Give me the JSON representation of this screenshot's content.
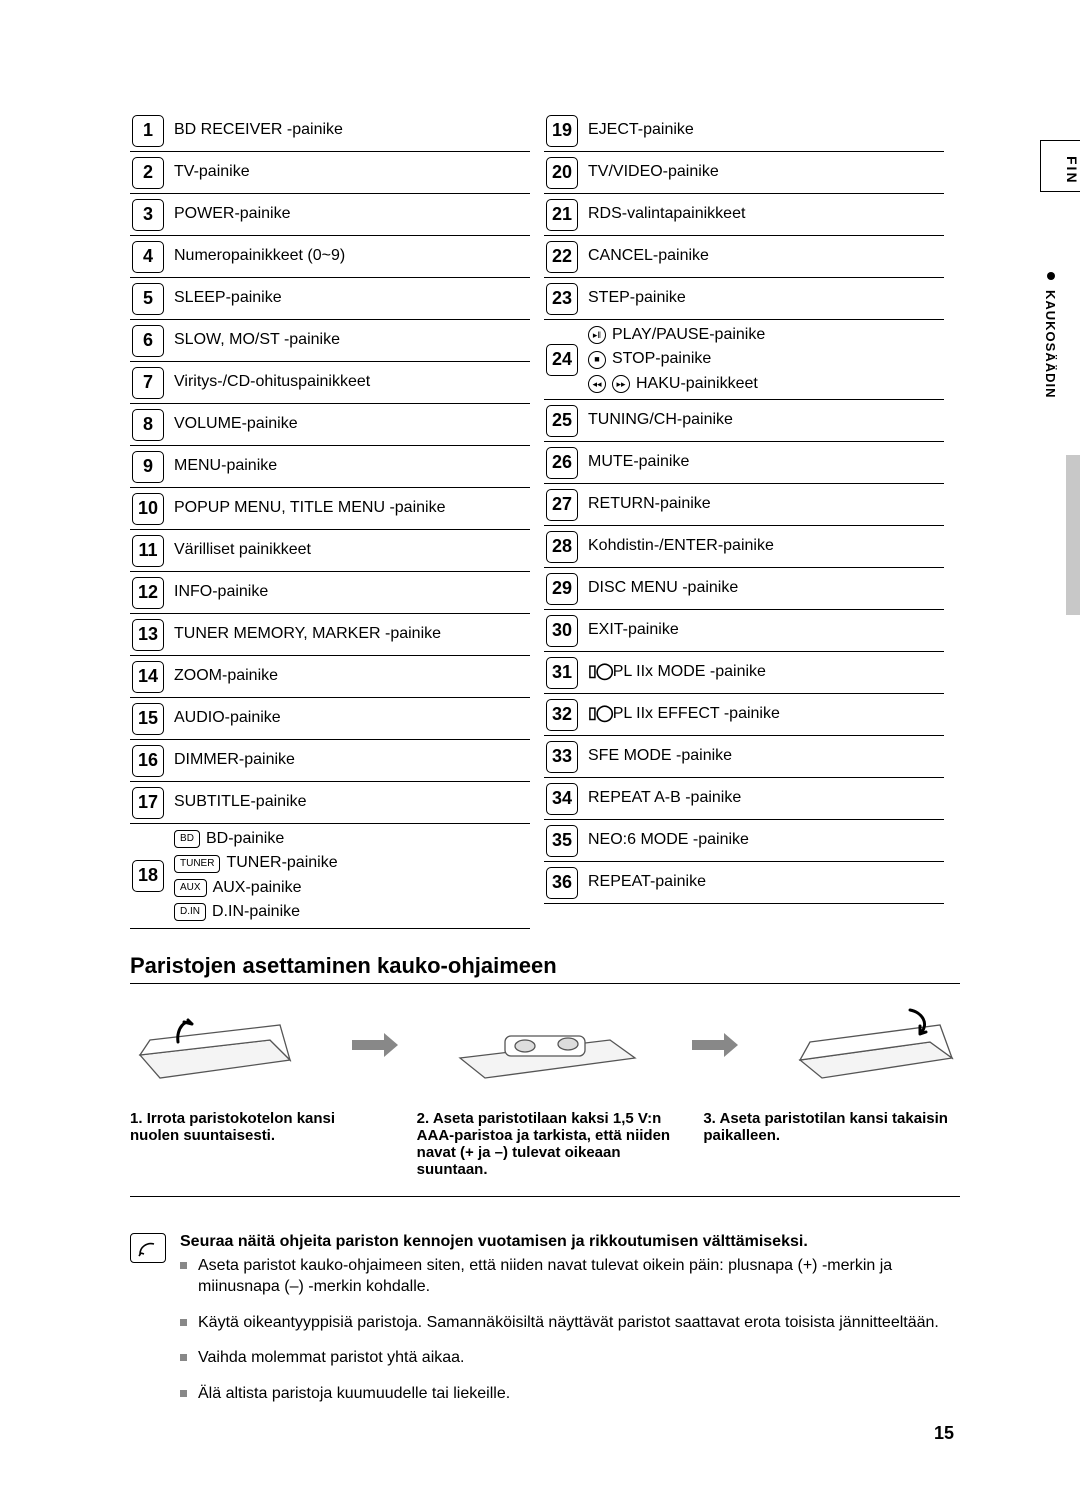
{
  "side": {
    "tab": "FIN",
    "label": "KAUKOSÄÄDIN"
  },
  "left": [
    {
      "n": "1",
      "t": "BD RECEIVER -painike"
    },
    {
      "n": "2",
      "t": "TV-painike"
    },
    {
      "n": "3",
      "t": "POWER-painike"
    },
    {
      "n": "4",
      "t": "Numeropainikkeet (0~9)"
    },
    {
      "n": "5",
      "t": "SLEEP-painike"
    },
    {
      "n": "6",
      "t": "SLOW, MO/ST -painike"
    },
    {
      "n": "7",
      "t": "Viritys-/CD-ohituspainikkeet"
    },
    {
      "n": "8",
      "t": "VOLUME-painike"
    },
    {
      "n": "9",
      "t": "MENU-painike"
    },
    {
      "n": "10",
      "t": "POPUP MENU, TITLE MENU -painike"
    },
    {
      "n": "11",
      "t": "Värilliset painikkeet"
    },
    {
      "n": "12",
      "t": "INFO-painike"
    },
    {
      "n": "13",
      "t": "TUNER MEMORY, MARKER -painike"
    },
    {
      "n": "14",
      "t": "ZOOM-painike"
    },
    {
      "n": "15",
      "t": "AUDIO-painike"
    },
    {
      "n": "16",
      "t": "DIMMER-painike"
    },
    {
      "n": "17",
      "t": "SUBTITLE-painike"
    }
  ],
  "left18": {
    "n": "18",
    "items": [
      {
        "box": "BD",
        "label": "BD-painike"
      },
      {
        "box": "TUNER",
        "label": "TUNER-painike"
      },
      {
        "box": "AUX",
        "label": "AUX-painike"
      },
      {
        "box": "D.IN",
        "label": "D.IN-painike"
      }
    ]
  },
  "right": [
    {
      "n": "19",
      "t": "EJECT-painike"
    },
    {
      "n": "20",
      "t": "TV/VIDEO-painike"
    },
    {
      "n": "21",
      "t": "RDS-valintapainikkeet"
    },
    {
      "n": "22",
      "t": "CANCEL-painike"
    },
    {
      "n": "23",
      "t": "STEP-painike"
    }
  ],
  "right24": {
    "n": "24",
    "items": [
      {
        "sym": "▸‖",
        "label": "PLAY/PAUSE-painike"
      },
      {
        "sym": "■",
        "label": "STOP-painike"
      },
      {
        "sym2": true,
        "label": "HAKU-painikkeet"
      }
    ]
  },
  "right2": [
    {
      "n": "25",
      "t": "TUNING/CH-painike"
    },
    {
      "n": "26",
      "t": "MUTE-painike"
    },
    {
      "n": "27",
      "t": "RETURN-painike"
    },
    {
      "n": "28",
      "t": "Kohdistin-/ENTER-painike"
    },
    {
      "n": "29",
      "t": "DISC MENU -painike"
    },
    {
      "n": "30",
      "t": "EXIT-painike"
    },
    {
      "n": "31",
      "t": "PL IIx MODE -painike",
      "pl": true
    },
    {
      "n": "32",
      "t": "PL IIx EFFECT -painike",
      "pl": true
    },
    {
      "n": "33",
      "t": "SFE MODE -painike"
    },
    {
      "n": "34",
      "t": "REPEAT A-B -painike"
    },
    {
      "n": "35",
      "t": "NEO:6 MODE -painike"
    },
    {
      "n": "36",
      "t": "REPEAT-painike"
    }
  ],
  "battery": {
    "title": "Paristojen asettaminen kauko-ohjaimeen",
    "steps": [
      {
        "n": "1.",
        "t": "Irrota paristokotelon kansi nuolen suuntaisesti."
      },
      {
        "n": "2.",
        "t": "Aseta paristotilaan kaksi 1,5 V:n AAA-paristoa ja tarkista, että niiden navat (+ ja –) tulevat oikeaan suuntaan."
      },
      {
        "n": "3.",
        "t": "Aseta paristotilan kansi takaisin paikalleen."
      }
    ]
  },
  "note": {
    "title": "Seuraa näitä ohjeita pariston kennojen vuotamisen ja rikkoutumisen välttämiseksi.",
    "items": [
      "Aseta paristot kauko-ohjaimeen siten, että niiden navat tulevat oikein päin: plusnapa (+) -merkin ja miinusnapa (–) -merkin kohdalle.",
      "Käytä oikeantyyppisiä paristoja. Samannäköisiltä näyttävät paristot saattavat erota toisista jännitteeltään.",
      "Vaihda molemmat paristot yhtä aikaa.",
      "Älä altista paristoja kuumuudelle tai liekeille."
    ]
  },
  "page": "15"
}
